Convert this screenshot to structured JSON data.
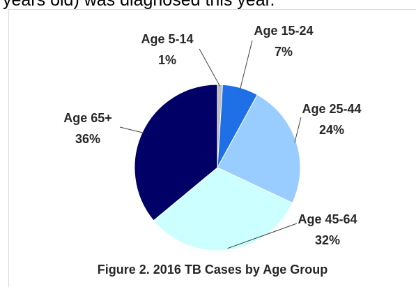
{
  "page_text": "years old) was diagnosed this year.",
  "chart_data": {
    "type": "pie",
    "title": "Figure 2. 2016 TB Cases by Age Group",
    "categories": [
      "Age 5-14",
      "Age 15-24",
      "Age 25-44",
      "Age 45-64",
      "Age 65+"
    ],
    "values": [
      1,
      7,
      24,
      32,
      36
    ],
    "value_labels": [
      "1%",
      "7%",
      "24%",
      "32%",
      "36%"
    ],
    "colors": [
      "#bfbfbf",
      "#1f6fe6",
      "#99ccff",
      "#ccffff",
      "#000066"
    ]
  }
}
